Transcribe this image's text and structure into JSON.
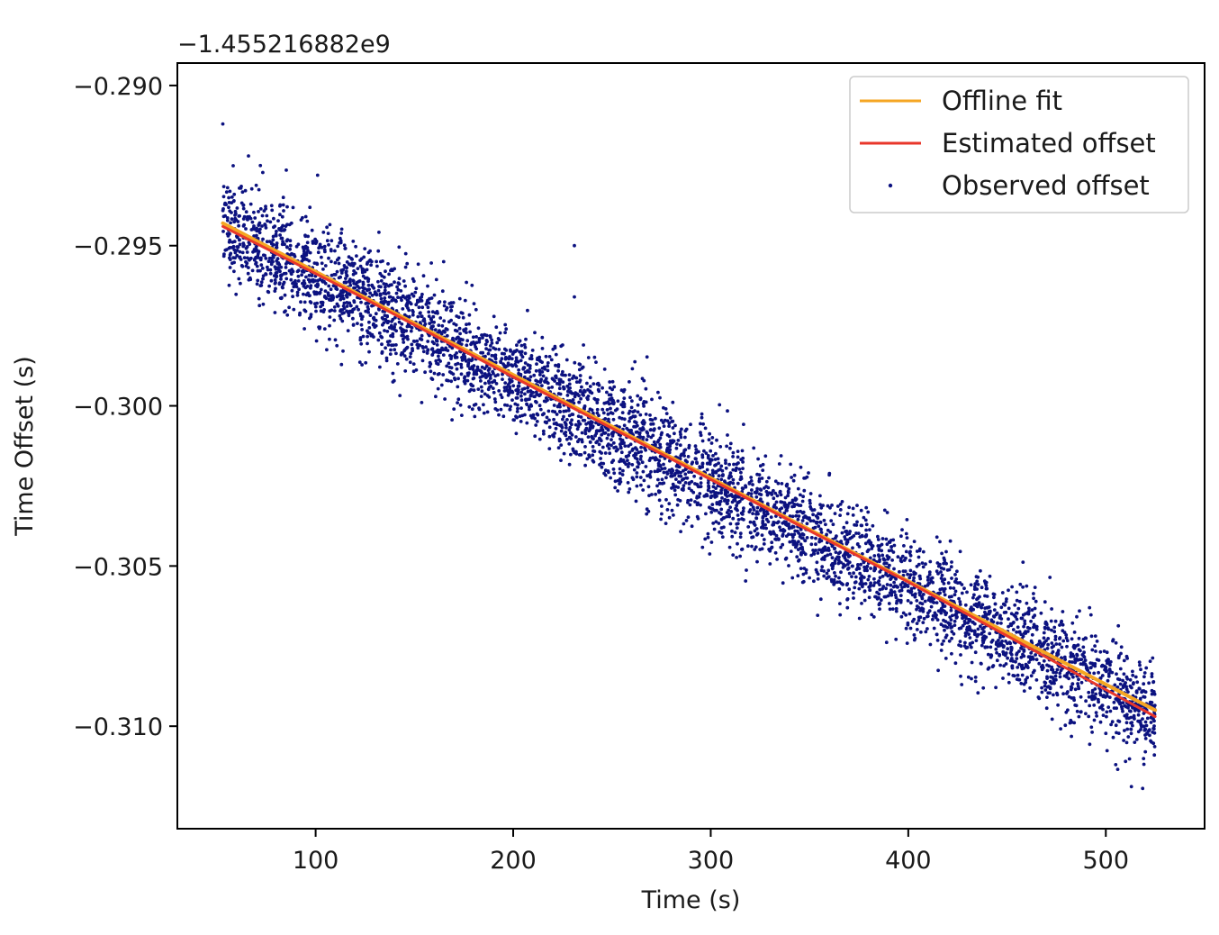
{
  "chart_data": {
    "type": "scatter",
    "offset_label": "−1.455216882e9",
    "xlabel": "Time (s)",
    "ylabel": "Time Offset (s)",
    "xlim": [
      30,
      550
    ],
    "ylim": [
      -0.3132,
      -0.2893
    ],
    "x_ticks": [
      100,
      200,
      300,
      400,
      500
    ],
    "x_tick_labels": [
      "100",
      "200",
      "300",
      "400",
      "500"
    ],
    "y_ticks": [
      -0.29,
      -0.295,
      -0.3,
      -0.305,
      -0.31
    ],
    "y_tick_labels": [
      "−0.290",
      "−0.295",
      "−0.300",
      "−0.305",
      "−0.310"
    ],
    "legend_position": "top-right",
    "grid": false,
    "series": [
      {
        "name": "Offline fit",
        "kind": "line",
        "color": "#f5a623",
        "x": [
          53,
          525
        ],
        "y": [
          -0.2943,
          -0.3095
        ]
      },
      {
        "name": "Estimated offset",
        "kind": "line",
        "color": "#e8372b",
        "x": [
          53,
          120,
          200,
          300,
          400,
          525
        ],
        "y": [
          -0.2944,
          -0.2965,
          -0.2991,
          -0.3023,
          -0.3055,
          -0.3097
        ]
      },
      {
        "name": "Observed offset",
        "kind": "scatter",
        "color": "#0c1280",
        "trend": {
          "x": [
            53,
            525
          ],
          "y": [
            -0.2944,
            -0.3096
          ]
        },
        "x_range": [
          53,
          525
        ],
        "noise_sd": 0.0008,
        "n_points": 4800,
        "outliers": [
          {
            "x": 53,
            "y": -0.2912
          },
          {
            "x": 66,
            "y": -0.2922
          },
          {
            "x": 72,
            "y": -0.2925
          },
          {
            "x": 101,
            "y": -0.2928
          },
          {
            "x": 231,
            "y": -0.295
          },
          {
            "x": 231,
            "y": -0.2966
          },
          {
            "x": 225,
            "y": -0.2981
          },
          {
            "x": 232,
            "y": -0.3015
          },
          {
            "x": 505,
            "y": -0.3112
          },
          {
            "x": 510,
            "y": -0.3111
          },
          {
            "x": 520,
            "y": -0.3108
          }
        ]
      }
    ]
  }
}
